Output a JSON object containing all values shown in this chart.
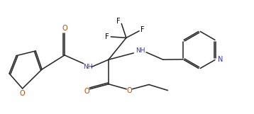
{
  "bg_color": "#ffffff",
  "bond_color": "#2a2a2a",
  "label_color": "#000000",
  "N_color": "#3333bb",
  "O_color": "#bb4400",
  "F_color": "#2a2a2a",
  "figsize": [
    3.58,
    1.61
  ],
  "dpi": 100,
  "xlim": [
    0,
    9.5
  ],
  "ylim": [
    0,
    4.3
  ]
}
